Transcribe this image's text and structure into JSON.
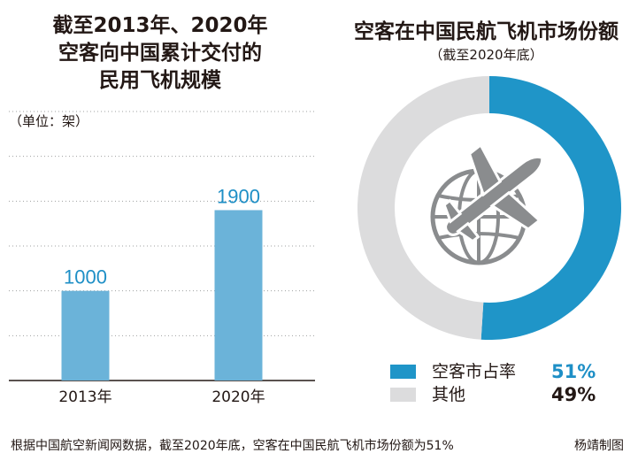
{
  "bar_chart": {
    "title_lines": [
      "截至2013年、2020年",
      "空客向中国累计交付的",
      "民用飞机规模"
    ],
    "unit_label": "（单位：架）",
    "bar_color": "#6bb3d9",
    "label_color": "#1e8fc6"
  },
  "donut_chart": {
    "title": "空客在中国民航飞机市场份额",
    "subtitle": "（截至2020年底）",
    "center_icon": "airplane-globe-icon",
    "legend": [
      {
        "label": "空客市占率",
        "value": "51%",
        "color": "#1f95c8"
      },
      {
        "label": "其他",
        "value": "49%",
        "color": "#dcdcdd"
      }
    ]
  },
  "footer": {
    "note": "根据中国航空新闻网数据，截至2020年底，空客在中国民航飞机市场份额为51%",
    "credit": "杨靖制图"
  },
  "chart_data": [
    {
      "type": "bar",
      "title": "截至2013年、2020年空客向中国累计交付的民用飞机规模",
      "categories": [
        "2013年",
        "2020年"
      ],
      "values": [
        1000,
        1900
      ],
      "ylabel": "单位：架",
      "ylim": [
        0,
        3000
      ],
      "grid": true
    },
    {
      "type": "pie",
      "title": "空客在中国民航飞机市场份额",
      "subtitle": "截至2020年底",
      "labels": [
        "空客市占率",
        "其他"
      ],
      "values": [
        51,
        49
      ]
    }
  ]
}
